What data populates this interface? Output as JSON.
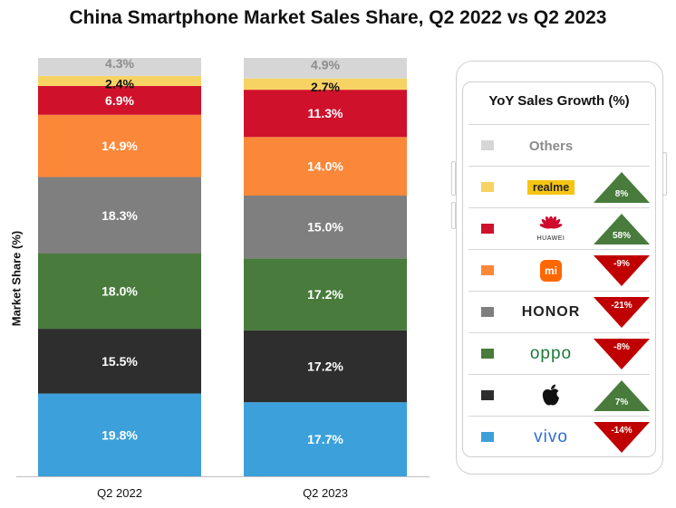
{
  "chart_data": {
    "type": "bar",
    "stacked": true,
    "title": "China Smartphone Market Sales Share, Q2 2022 vs Q2 2023",
    "ylabel": "Market Share (%)",
    "categories": [
      "Q2 2022",
      "Q2 2023"
    ],
    "series": [
      {
        "name": "vivo",
        "color": "#3ca0db",
        "values": [
          19.8,
          17.7
        ],
        "labels": [
          "19.8%",
          "17.7%"
        ]
      },
      {
        "name": "Apple",
        "color": "#2e2e2e",
        "values": [
          15.5,
          17.2
        ],
        "labels": [
          "15.5%",
          "17.2%"
        ]
      },
      {
        "name": "OPPO",
        "color": "#487b3c",
        "values": [
          18.0,
          17.2
        ],
        "labels": [
          "18.0%",
          "17.2%"
        ]
      },
      {
        "name": "HONOR",
        "color": "#7f7f7f",
        "values": [
          18.3,
          15.0
        ],
        "labels": [
          "18.3%",
          "15.0%"
        ]
      },
      {
        "name": "Xiaomi",
        "color": "#fb8738",
        "values": [
          14.9,
          14.0
        ],
        "labels": [
          "14.9%",
          "14.0%"
        ]
      },
      {
        "name": "HUAWEI",
        "color": "#d0112b",
        "values": [
          6.9,
          11.3
        ],
        "labels": [
          "6.9%",
          "11.3%"
        ]
      },
      {
        "name": "realme",
        "color": "#f7d364",
        "values": [
          2.4,
          2.7
        ],
        "labels": [
          "2.4%",
          "2.7%"
        ]
      },
      {
        "name": "Others",
        "color": "#d6d6d6",
        "values": [
          4.3,
          4.9
        ],
        "labels": [
          "4.3%",
          "4.9%"
        ]
      }
    ],
    "ylim": [
      0,
      100
    ]
  },
  "panel": {
    "title": "YoY Sales Growth (%)",
    "others_label": "Others",
    "realme_text": "realme",
    "huawei_text": "HUAWEI",
    "mi_text": "mi",
    "honor_text": "HONOR",
    "oppo_text": "oppo",
    "vivo_text": "vivo",
    "up_color": "#487b3c",
    "down_color": "#c00000",
    "rows": [
      {
        "brand": "realme",
        "growth": 8,
        "label": "8%",
        "direction": "up"
      },
      {
        "brand": "HUAWEI",
        "growth": 58,
        "label": "58%",
        "direction": "up"
      },
      {
        "brand": "Xiaomi",
        "growth": -9,
        "label": "-9%",
        "direction": "down"
      },
      {
        "brand": "HONOR",
        "growth": -21,
        "label": "-21%",
        "direction": "down"
      },
      {
        "brand": "OPPO",
        "growth": -8,
        "label": "-8%",
        "direction": "down"
      },
      {
        "brand": "Apple",
        "growth": 7,
        "label": "7%",
        "direction": "up"
      },
      {
        "brand": "vivo",
        "growth": -14,
        "label": "-14%",
        "direction": "down"
      }
    ]
  }
}
